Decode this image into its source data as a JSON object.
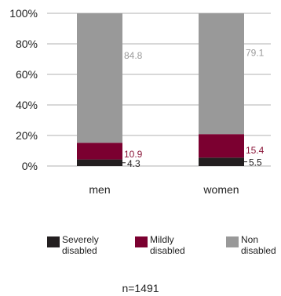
{
  "chart_data": {
    "type": "bar",
    "stacked": true,
    "categories": [
      "men",
      "women"
    ],
    "series": [
      {
        "name": "Severely disabled",
        "values": [
          4.3,
          5.5
        ],
        "color": "#231f20",
        "label_color": "#231f20"
      },
      {
        "name": "Mildly disabled",
        "values": [
          10.9,
          15.4
        ],
        "color": "#7b0030",
        "label_color": "#8a1538"
      },
      {
        "name": "Non disabled",
        "values": [
          84.8,
          79.1
        ],
        "color": "#999999",
        "label_color": "#9a9a9a"
      }
    ],
    "data_labels": {
      "men": [
        "4.3",
        "10.9",
        "84.8"
      ],
      "women": [
        "5.5",
        "15.4",
        "79.1"
      ]
    },
    "legend": {
      "placement": "bottom",
      "items": [
        {
          "line1": "Severely",
          "line2": "disabled"
        },
        {
          "line1": "Mildly",
          "line2": "disabled"
        },
        {
          "line1": "Non",
          "line2": "disabled"
        }
      ]
    },
    "y_ticks": [
      "0%",
      "20%",
      "40%",
      "60%",
      "80%",
      "100%"
    ],
    "ylim": [
      0,
      100
    ],
    "grid": true,
    "note": "n=1491"
  }
}
